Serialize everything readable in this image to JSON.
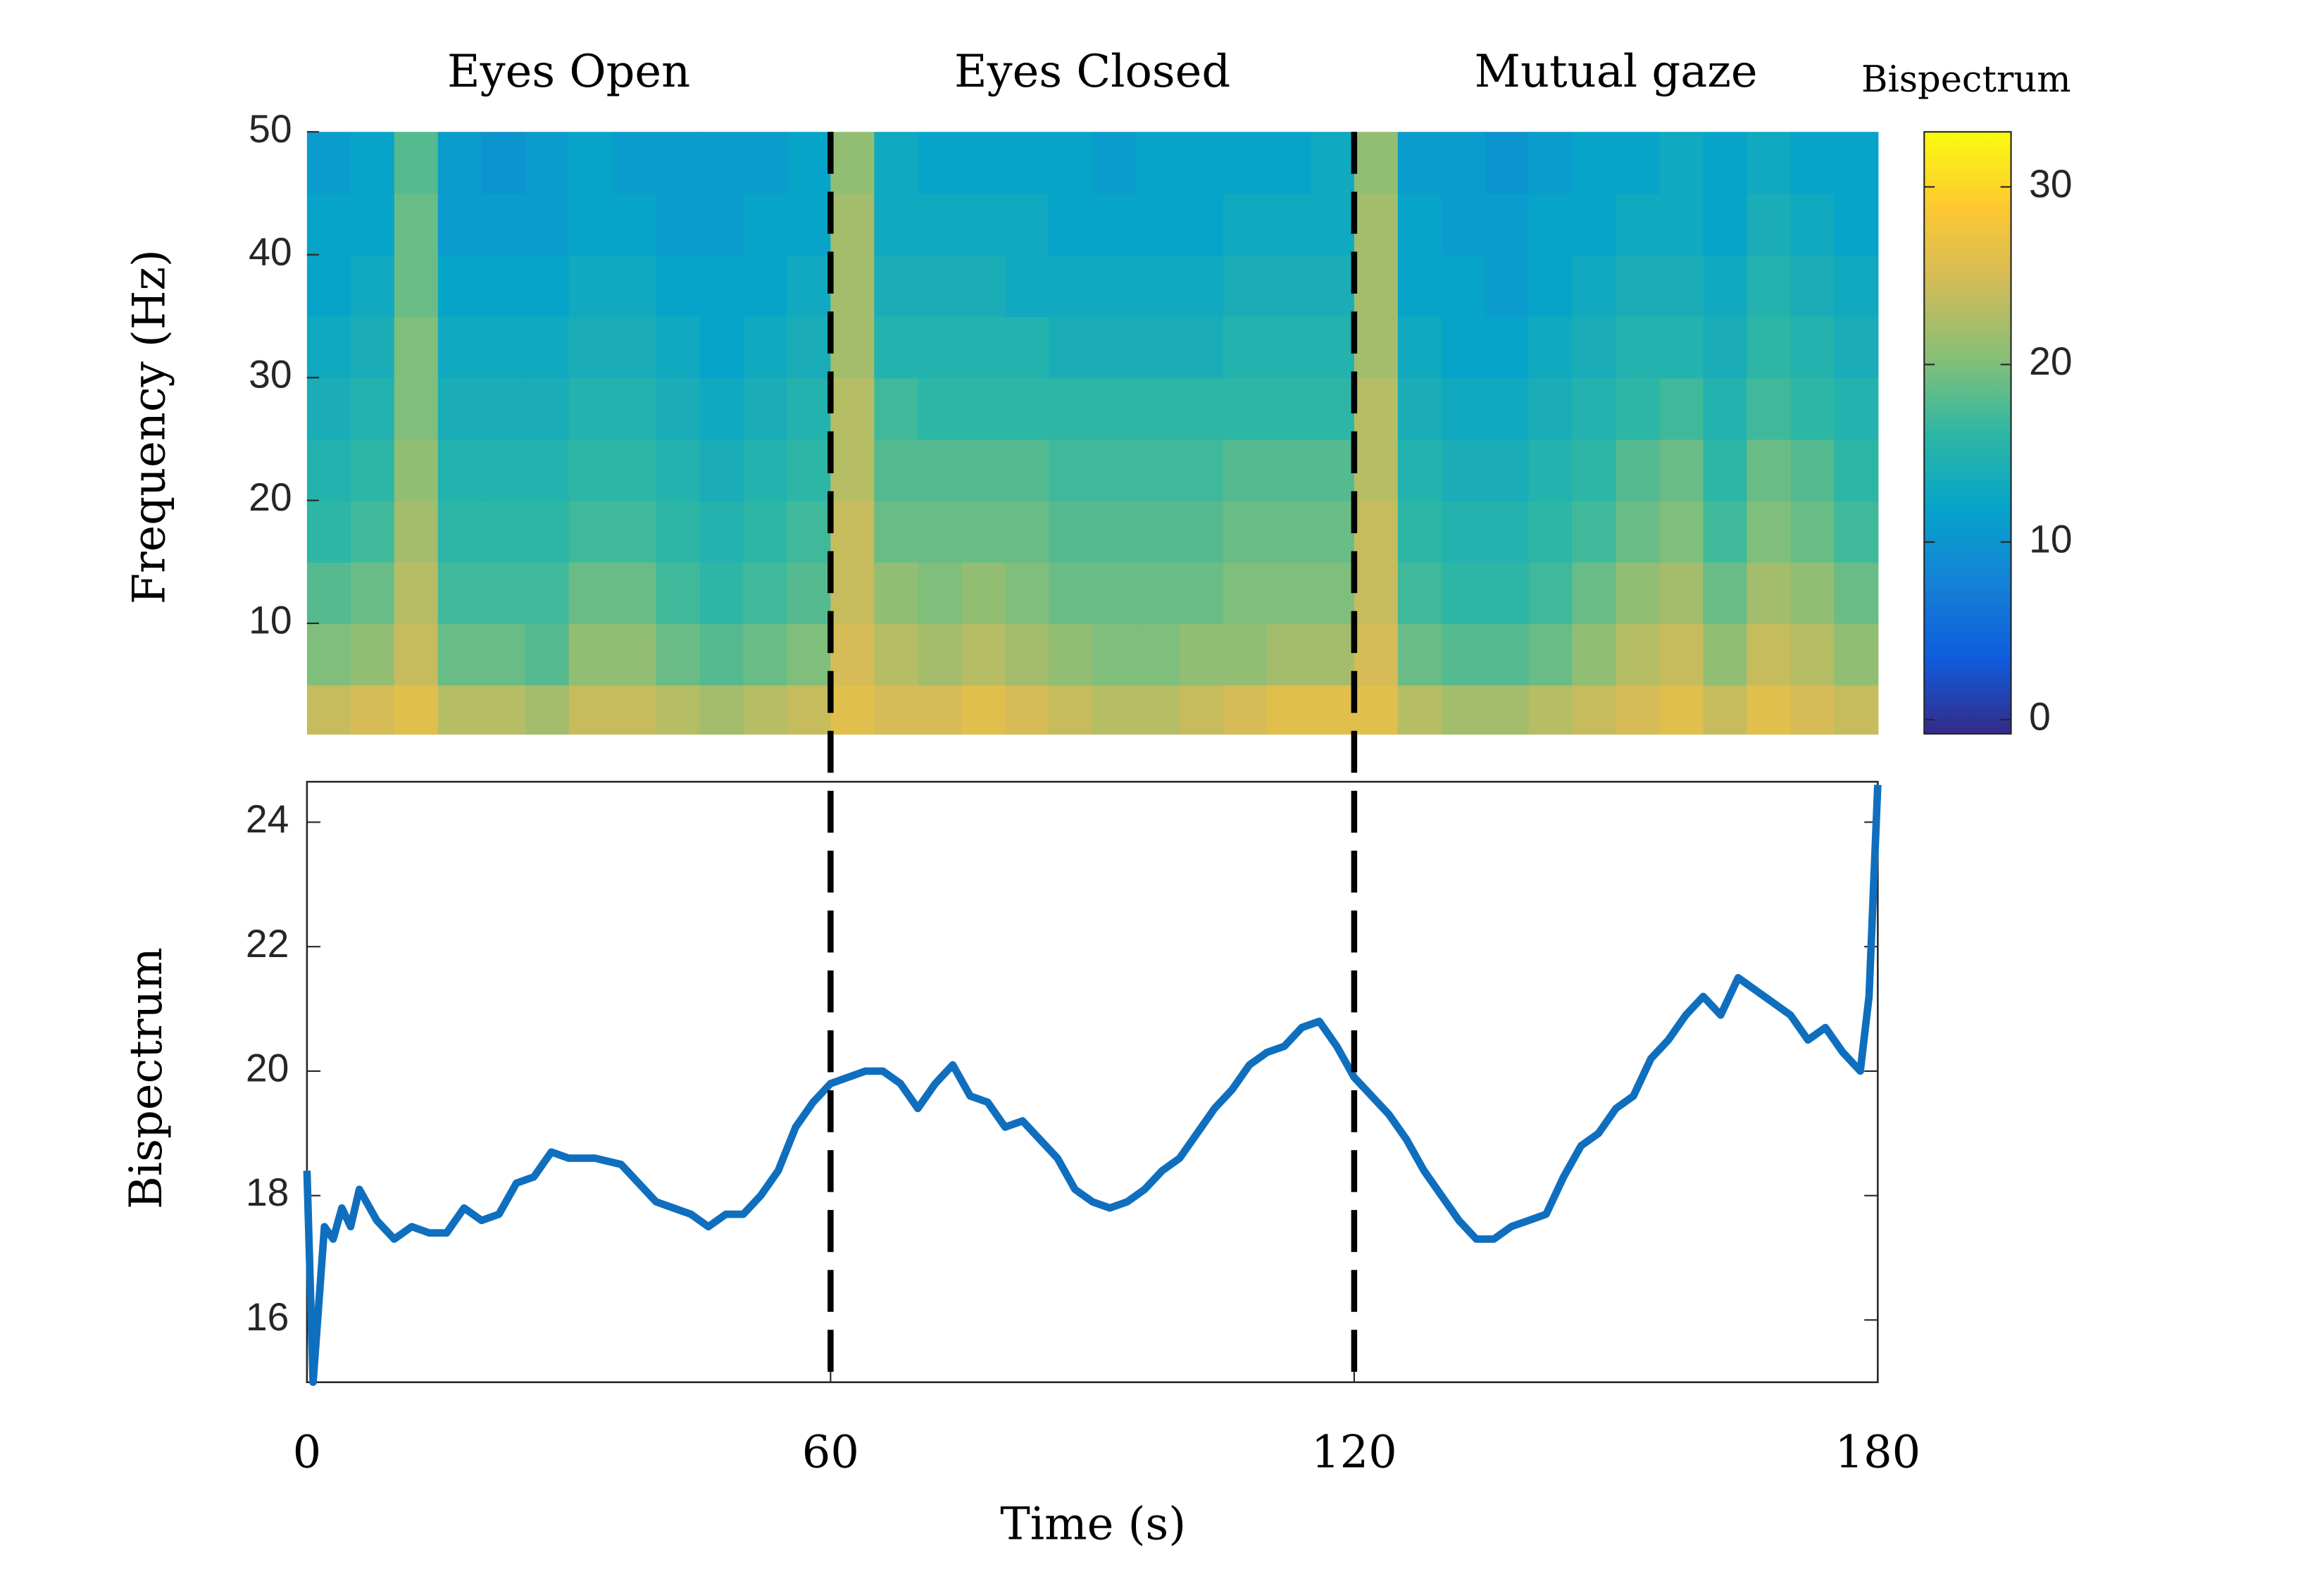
{
  "chart_data": [
    {
      "type": "heatmap",
      "segments": [
        {
          "label": "Eyes Open",
          "range": [
            0,
            60
          ]
        },
        {
          "label": "Eyes Closed",
          "range": [
            60,
            120
          ]
        },
        {
          "label": "Mutual gaze",
          "range": [
            120,
            180
          ]
        }
      ],
      "ylabel": "Frequency (Hz)",
      "xlim": [
        0,
        180
      ],
      "ylim": [
        1,
        50
      ],
      "yticks": [
        10,
        20,
        30,
        40,
        50
      ],
      "xbins": [
        0,
        5,
        10,
        15,
        20,
        25,
        30,
        35,
        40,
        45,
        50,
        55,
        60,
        65,
        70,
        75,
        80,
        85,
        90,
        95,
        100,
        105,
        110,
        115,
        120,
        125,
        130,
        135,
        140,
        145,
        150,
        155,
        160,
        165,
        170,
        175,
        180
      ],
      "ybins": [
        1,
        5,
        10,
        15,
        20,
        25,
        30,
        35,
        40,
        45,
        50
      ],
      "values": [
        [
          24,
          25,
          26,
          23,
          23,
          22,
          24,
          24,
          23,
          22,
          23,
          24,
          26,
          25,
          25,
          26,
          25,
          24,
          23,
          23,
          24,
          25,
          26,
          26,
          26,
          23,
          22,
          22,
          23,
          24,
          25,
          26,
          24,
          26,
          25,
          24
        ],
        [
          20,
          21,
          24,
          19,
          19,
          18,
          21,
          21,
          19,
          18,
          19,
          20,
          25,
          23,
          22,
          23,
          22,
          21,
          20,
          20,
          21,
          21,
          22,
          22,
          25,
          19,
          18,
          18,
          19,
          21,
          23,
          24,
          21,
          24,
          23,
          21
        ],
        [
          18,
          19,
          23,
          17,
          17,
          17,
          19,
          19,
          17,
          16,
          17,
          18,
          24,
          21,
          20,
          21,
          20,
          19,
          19,
          19,
          19,
          20,
          20,
          20,
          24,
          17,
          16,
          16,
          17,
          19,
          21,
          22,
          19,
          22,
          21,
          19
        ],
        [
          16,
          17,
          22,
          16,
          16,
          16,
          17,
          17,
          16,
          15,
          16,
          17,
          24,
          19,
          19,
          19,
          19,
          18,
          18,
          18,
          18,
          19,
          19,
          19,
          24,
          16,
          15,
          15,
          16,
          17,
          19,
          20,
          17,
          20,
          19,
          17
        ],
        [
          15,
          16,
          21,
          15,
          15,
          15,
          16,
          16,
          15,
          14,
          15,
          16,
          23,
          18,
          18,
          18,
          18,
          17,
          17,
          17,
          17,
          18,
          18,
          18,
          23,
          15,
          14,
          14,
          15,
          16,
          18,
          19,
          16,
          19,
          18,
          16
        ],
        [
          14,
          15,
          20,
          14,
          14,
          14,
          15,
          15,
          14,
          13,
          14,
          15,
          23,
          17,
          16,
          16,
          16,
          16,
          16,
          16,
          16,
          16,
          16,
          16,
          23,
          14,
          13,
          13,
          14,
          15,
          16,
          17,
          15,
          17,
          16,
          15
        ],
        [
          13,
          14,
          20,
          13,
          13,
          13,
          14,
          14,
          13,
          12,
          13,
          14,
          22,
          15,
          15,
          15,
          15,
          14,
          14,
          14,
          14,
          15,
          15,
          15,
          22,
          13,
          12,
          12,
          13,
          14,
          15,
          15,
          14,
          16,
          15,
          14
        ],
        [
          12,
          13,
          19,
          12,
          12,
          12,
          13,
          13,
          12,
          12,
          12,
          13,
          22,
          14,
          14,
          14,
          13,
          13,
          13,
          13,
          13,
          14,
          14,
          14,
          22,
          12,
          12,
          11,
          12,
          13,
          14,
          14,
          13,
          15,
          14,
          13
        ],
        [
          12,
          12,
          19,
          11,
          11,
          11,
          12,
          12,
          11,
          11,
          12,
          12,
          22,
          13,
          13,
          13,
          13,
          12,
          12,
          12,
          12,
          13,
          13,
          13,
          22,
          12,
          11,
          11,
          12,
          12,
          13,
          13,
          12,
          14,
          13,
          12
        ],
        [
          11,
          12,
          18,
          11,
          10,
          11,
          12,
          11,
          11,
          11,
          11,
          12,
          21,
          13,
          12,
          12,
          12,
          12,
          11,
          12,
          12,
          12,
          12,
          13,
          21,
          11,
          11,
          10,
          11,
          12,
          12,
          13,
          12,
          13,
          12,
          12
        ]
      ],
      "colorbar": {
        "title": "Bispectrum",
        "clim": [
          -0.8,
          33.1
        ],
        "ticks": [
          0,
          10,
          20,
          30
        ]
      },
      "colormap": [
        "#352a87",
        "#0f5cdd",
        "#1481d6",
        "#06a4ca",
        "#2eb7a4",
        "#87bf77",
        "#d1bb59",
        "#fec832",
        "#f9fb0e"
      ]
    },
    {
      "type": "line",
      "xlabel": "Time (s)",
      "ylabel": "Bispectrum",
      "xlim": [
        0,
        180
      ],
      "xticks": [
        0,
        60,
        120,
        180
      ],
      "ylim": [
        15,
        24.65
      ],
      "yticks": [
        16,
        18,
        20,
        22,
        24
      ],
      "vlines": [
        60,
        120
      ],
      "x": [
        0,
        0.7,
        2,
        3,
        4,
        5,
        6,
        8,
        10,
        12,
        14,
        16,
        18,
        20,
        22,
        24,
        26,
        28,
        30,
        33,
        36,
        38,
        40,
        42,
        44,
        46,
        48,
        50,
        52,
        54,
        56,
        58,
        60,
        62,
        64,
        66,
        68,
        70,
        72,
        74,
        76,
        78,
        80,
        82,
        84,
        86,
        88,
        90,
        92,
        94,
        96,
        98,
        100,
        102,
        104,
        106,
        108,
        110,
        112,
        114,
        116,
        118,
        120,
        122,
        124,
        126,
        128,
        130,
        132,
        134,
        136,
        138,
        140,
        142,
        144,
        146,
        148,
        150,
        152,
        154,
        156,
        158,
        160,
        162,
        164,
        166,
        168,
        170,
        172,
        174,
        176,
        178,
        179,
        180
      ],
      "series": [
        {
          "color": "#0f6fbe",
          "values": [
            18.4,
            15.0,
            17.5,
            17.3,
            17.8,
            17.5,
            18.1,
            17.6,
            17.3,
            17.5,
            17.4,
            17.4,
            17.8,
            17.6,
            17.7,
            18.2,
            18.3,
            18.7,
            18.6,
            18.6,
            18.5,
            18.2,
            17.9,
            17.8,
            17.7,
            17.5,
            17.7,
            17.7,
            18.0,
            18.4,
            19.1,
            19.5,
            19.8,
            19.9,
            20.0,
            20.0,
            19.8,
            19.4,
            19.8,
            20.1,
            19.6,
            19.5,
            19.1,
            19.2,
            18.9,
            18.6,
            18.1,
            17.9,
            17.8,
            17.9,
            18.1,
            18.4,
            18.6,
            19.0,
            19.4,
            19.7,
            20.1,
            20.3,
            20.4,
            20.7,
            20.8,
            20.4,
            19.9,
            19.6,
            19.3,
            18.9,
            18.4,
            18.0,
            17.6,
            17.3,
            17.3,
            17.5,
            17.6,
            17.7,
            18.3,
            18.8,
            19.0,
            19.4,
            19.6,
            20.2,
            20.5,
            20.9,
            21.2,
            20.9,
            21.5,
            21.3,
            21.1,
            20.9,
            20.5,
            20.7,
            20.3,
            20.0,
            21.2,
            24.6
          ]
        }
      ]
    }
  ]
}
